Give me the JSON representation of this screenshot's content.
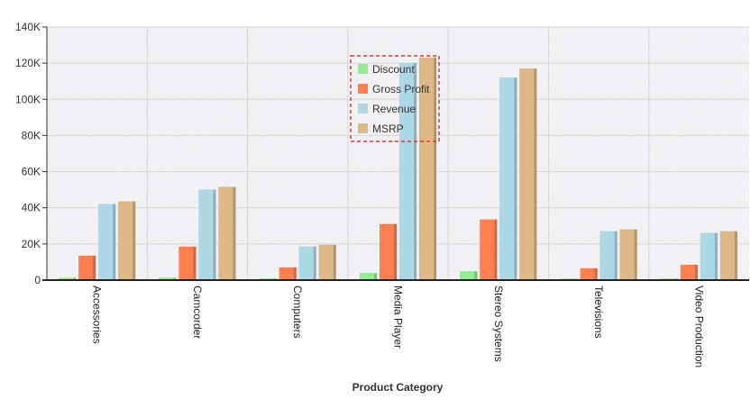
{
  "chart_data": {
    "type": "bar",
    "title": "",
    "xlabel": "Product Category",
    "ylabel": "",
    "ylim": [
      0,
      140000
    ],
    "yticks": [
      0,
      20000,
      40000,
      60000,
      80000,
      100000,
      120000,
      140000
    ],
    "ytick_labels": [
      "0",
      "20K",
      "40K",
      "60K",
      "80K",
      "100K",
      "120K",
      "140K"
    ],
    "grid": true,
    "legend_position": "top-center",
    "categories": [
      "Accessories",
      "Camcorder",
      "Computers",
      "Media Player",
      "Stereo Systems",
      "Televisions",
      "Video Production"
    ],
    "series": [
      {
        "name": "Discount",
        "color": "#90EE90",
        "values": [
          1200,
          1300,
          900,
          3800,
          4800,
          700,
          800
        ]
      },
      {
        "name": "Gross Profit",
        "color": "#FF7F50",
        "values": [
          13500,
          18500,
          7000,
          31000,
          33500,
          6500,
          8500
        ]
      },
      {
        "name": "Revenue",
        "color": "#ADD8E6",
        "values": [
          42000,
          50000,
          18500,
          120000,
          112000,
          27000,
          26000
        ]
      },
      {
        "name": "MSRP",
        "color": "#DEB887",
        "values": [
          43500,
          51500,
          19500,
          123000,
          117000,
          28000,
          27000
        ]
      }
    ]
  }
}
